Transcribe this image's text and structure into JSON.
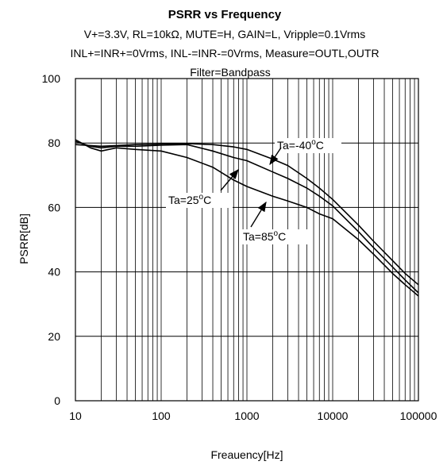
{
  "title": "PSRR vs Frequency",
  "subtitle_lines": [
    "V+=3.3V, RL=10kΩ, MUTE=H, GAIN=L, Vripple=0.1Vrms",
    "INL+=INR+=0Vrms, INL-=INR-=0Vrms, Measure=OUTL,OUTR",
    "Filter=Bandpass"
  ],
  "chart_data": {
    "type": "line",
    "xlabel": "Freauency[Hz]",
    "ylabel": "PSRR[dB]",
    "xscale": "log",
    "xlim": [
      10,
      100000
    ],
    "ylim": [
      0,
      100
    ],
    "x_ticks": [
      10,
      100,
      1000,
      10000,
      100000
    ],
    "x_tick_labels": [
      "10",
      "100",
      "1000",
      "10000",
      "100000"
    ],
    "y_ticks": [
      0,
      20,
      40,
      60,
      80,
      100
    ],
    "y_tick_labels": [
      "0",
      "20",
      "40",
      "60",
      "80",
      "100"
    ],
    "grid": true,
    "series": [
      {
        "name": "Ta=-40°C",
        "x": [
          10,
          15,
          20,
          30,
          50,
          100,
          200,
          400,
          700,
          1000,
          2000,
          3000,
          5000,
          7000,
          10000,
          20000,
          30000,
          50000,
          70000,
          100000
        ],
        "y": [
          79.5,
          79.2,
          79.0,
          79.2,
          79.5,
          79.7,
          79.8,
          79.5,
          78.8,
          78,
          75,
          73,
          69,
          66,
          62.5,
          54.5,
          49.5,
          43.5,
          39.5,
          36
        ]
      },
      {
        "name": "Ta=25°C",
        "x": [
          10,
          15,
          20,
          30,
          50,
          100,
          200,
          400,
          700,
          1000,
          2000,
          3000,
          5000,
          7000,
          10000,
          20000,
          30000,
          50000,
          70000,
          100000
        ],
        "y": [
          80.5,
          79,
          78.5,
          79,
          79,
          79.3,
          79.5,
          77.5,
          75.5,
          74.5,
          71,
          69,
          66,
          63.5,
          60.5,
          52.5,
          47.5,
          41.5,
          37.5,
          33.5
        ]
      },
      {
        "name": "Ta=85°C",
        "x": [
          10,
          15,
          20,
          30,
          50,
          100,
          200,
          400,
          700,
          1000,
          2000,
          3000,
          5000,
          7000,
          10000,
          20000,
          30000,
          50000,
          70000,
          100000
        ],
        "y": [
          81,
          78.5,
          77.5,
          78.5,
          78,
          77.5,
          75.5,
          72.5,
          68.5,
          66.5,
          63.5,
          62,
          60,
          58,
          56.5,
          50,
          45.5,
          39.5,
          36,
          32.5
        ]
      }
    ],
    "annotations": [
      {
        "text": "Ta=-40",
        "sup": "o",
        "suffix": "C",
        "series": "Ta=-40°C"
      },
      {
        "text": "Ta=25",
        "sup": "o",
        "suffix": "C",
        "series": "Ta=25°C"
      },
      {
        "text": "Ta=85",
        "sup": "o",
        "suffix": "C",
        "series": "Ta=85°C"
      }
    ],
    "colors": {
      "line": "#000000",
      "grid": "#000000",
      "background": "#ffffff"
    }
  }
}
